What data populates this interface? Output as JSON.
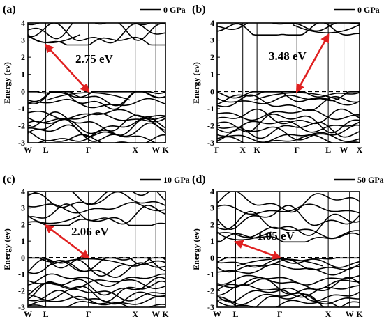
{
  "colors": {
    "bands": "#000000",
    "arrow": "#e02020",
    "fermi": "#000000",
    "background": "#ffffff"
  },
  "chart_data": [
    {
      "type": "line",
      "panel": "(a)",
      "pressure": "0 GPa",
      "ylabel": "Energy (ev)",
      "ylim": [
        -3,
        4
      ],
      "yticks": [
        -3,
        -2,
        -1,
        0,
        1,
        2,
        3,
        4
      ],
      "kpoints": [
        {
          "label": "W",
          "pos": 0.0
        },
        {
          "label": "L",
          "pos": 0.13
        },
        {
          "label": "Γ",
          "pos": 0.44
        },
        {
          "label": "X",
          "pos": 0.78
        },
        {
          "label": "W",
          "pos": 0.93
        },
        {
          "label": "K",
          "pos": 1.0
        }
      ],
      "fermi_level": 0,
      "gap": {
        "label": "2.75 eV",
        "from": {
          "kpos": 0.44,
          "energy": 0.0
        },
        "to": {
          "kpos": 0.13,
          "energy": 2.72
        }
      }
    },
    {
      "type": "line",
      "panel": "(b)",
      "pressure": "0 GPa",
      "ylabel": "Energy (ev)",
      "ylim": [
        -3,
        4
      ],
      "yticks": [
        -3,
        -2,
        -1,
        0,
        1,
        2,
        3,
        4
      ],
      "kpoints": [
        {
          "label": "Γ",
          "pos": 0.0
        },
        {
          "label": "X",
          "pos": 0.18
        },
        {
          "label": "K",
          "pos": 0.28
        },
        {
          "label": "Γ",
          "pos": 0.56
        },
        {
          "label": "L",
          "pos": 0.78
        },
        {
          "label": "W",
          "pos": 0.89
        },
        {
          "label": "X",
          "pos": 1.0
        }
      ],
      "fermi_level": 0,
      "gap": {
        "label": "3.48 eV",
        "from": {
          "kpos": 0.56,
          "energy": 0.0
        },
        "to": {
          "kpos": 0.78,
          "energy": 3.3
        }
      }
    },
    {
      "type": "line",
      "panel": "(c)",
      "pressure": "10 GPa",
      "ylabel": "Energy (ev)",
      "ylim": [
        -3,
        4
      ],
      "yticks": [
        -3,
        -2,
        -1,
        0,
        1,
        2,
        3,
        4
      ],
      "kpoints": [
        {
          "label": "W",
          "pos": 0.0
        },
        {
          "label": "L",
          "pos": 0.13
        },
        {
          "label": "Γ",
          "pos": 0.44
        },
        {
          "label": "X",
          "pos": 0.78
        },
        {
          "label": "W",
          "pos": 0.93
        },
        {
          "label": "K",
          "pos": 1.0
        }
      ],
      "fermi_level": 0,
      "gap": {
        "label": "2.06 eV",
        "from": {
          "kpos": 0.44,
          "energy": 0.0
        },
        "to": {
          "kpos": 0.13,
          "energy": 1.95
        }
      }
    },
    {
      "type": "line",
      "panel": "(d)",
      "pressure": "50 GPa",
      "ylabel": "Energy (ev)",
      "ylim": [
        -3,
        4
      ],
      "yticks": [
        -3,
        -2,
        -1,
        0,
        1,
        2,
        3,
        4
      ],
      "kpoints": [
        {
          "label": "W",
          "pos": 0.0
        },
        {
          "label": "L",
          "pos": 0.13
        },
        {
          "label": "Γ",
          "pos": 0.44
        },
        {
          "label": "X",
          "pos": 0.78
        },
        {
          "label": "W",
          "pos": 0.93
        },
        {
          "label": "K",
          "pos": 1.0
        }
      ],
      "fermi_level": 0,
      "gap": {
        "label": "1.05 eV",
        "from": {
          "kpos": 0.44,
          "energy": 0.0
        },
        "to": {
          "kpos": 0.13,
          "energy": 0.95
        }
      }
    }
  ]
}
